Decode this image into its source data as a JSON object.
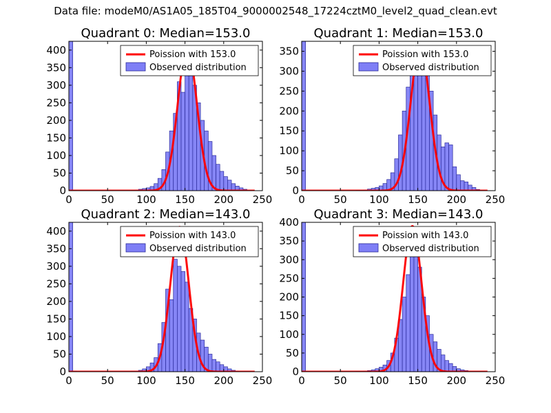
{
  "figure": {
    "suptitle": "Data file: modeM0/AS1A05_185T04_9000002548_17224cztM0_level2_quad_clean.evt"
  },
  "colors": {
    "bar_fill": "#7f7ff6",
    "bar_edge": "#2a2a9a",
    "curve": "#ff0000",
    "axis": "#000000"
  },
  "chart_data": [
    {
      "type": "bar",
      "title": "Quadrant 0: Median=153.0",
      "xlabel": "",
      "ylabel": "",
      "xlim": [
        0,
        250
      ],
      "ylim": [
        0,
        425
      ],
      "xticks": [
        0,
        50,
        100,
        150,
        200,
        250
      ],
      "yticks": [
        0,
        50,
        100,
        150,
        200,
        250,
        300,
        350,
        400
      ],
      "legend": {
        "location": "top-right",
        "entries": [
          "Poission with 153.0",
          "Observed distribution"
        ]
      },
      "bin_width": 5,
      "bins": [
        {
          "x": 0,
          "count": 425
        },
        {
          "x": 5,
          "count": 1
        },
        {
          "x": 10,
          "count": 0
        },
        {
          "x": 15,
          "count": 0
        },
        {
          "x": 20,
          "count": 0
        },
        {
          "x": 25,
          "count": 0
        },
        {
          "x": 30,
          "count": 0
        },
        {
          "x": 35,
          "count": 0
        },
        {
          "x": 40,
          "count": 0
        },
        {
          "x": 45,
          "count": 0
        },
        {
          "x": 50,
          "count": 0
        },
        {
          "x": 55,
          "count": 0
        },
        {
          "x": 60,
          "count": 0
        },
        {
          "x": 65,
          "count": 0
        },
        {
          "x": 70,
          "count": 0
        },
        {
          "x": 75,
          "count": 0
        },
        {
          "x": 80,
          "count": 1
        },
        {
          "x": 85,
          "count": 2
        },
        {
          "x": 90,
          "count": 4
        },
        {
          "x": 95,
          "count": 6
        },
        {
          "x": 100,
          "count": 8
        },
        {
          "x": 105,
          "count": 12
        },
        {
          "x": 110,
          "count": 20
        },
        {
          "x": 115,
          "count": 35
        },
        {
          "x": 120,
          "count": 60
        },
        {
          "x": 125,
          "count": 110
        },
        {
          "x": 130,
          "count": 170
        },
        {
          "x": 135,
          "count": 220
        },
        {
          "x": 140,
          "count": 310
        },
        {
          "x": 145,
          "count": 280
        },
        {
          "x": 150,
          "count": 350
        },
        {
          "x": 155,
          "count": 330
        },
        {
          "x": 160,
          "count": 300
        },
        {
          "x": 165,
          "count": 250
        },
        {
          "x": 170,
          "count": 200
        },
        {
          "x": 175,
          "count": 170
        },
        {
          "x": 180,
          "count": 140
        },
        {
          "x": 185,
          "count": 100
        },
        {
          "x": 190,
          "count": 75
        },
        {
          "x": 195,
          "count": 55
        },
        {
          "x": 200,
          "count": 40
        },
        {
          "x": 205,
          "count": 30
        },
        {
          "x": 210,
          "count": 20
        },
        {
          "x": 215,
          "count": 13
        },
        {
          "x": 220,
          "count": 8
        },
        {
          "x": 225,
          "count": 4
        }
      ],
      "poisson": {
        "mean": 153.0,
        "peak": 408
      }
    },
    {
      "type": "bar",
      "title": "Quadrant 1: Median=153.0",
      "xlabel": "",
      "ylabel": "",
      "xlim": [
        0,
        250
      ],
      "ylim": [
        0,
        375
      ],
      "xticks": [
        0,
        50,
        100,
        150,
        200,
        250
      ],
      "yticks": [
        0,
        50,
        100,
        150,
        200,
        250,
        300,
        350
      ],
      "legend": {
        "location": "top-right",
        "entries": [
          "Poission with 153.0",
          "Observed distribution"
        ]
      },
      "bin_width": 5,
      "bins": [
        {
          "x": 0,
          "count": 375
        },
        {
          "x": 5,
          "count": 0
        },
        {
          "x": 10,
          "count": 0
        },
        {
          "x": 15,
          "count": 0
        },
        {
          "x": 20,
          "count": 0
        },
        {
          "x": 25,
          "count": 0
        },
        {
          "x": 30,
          "count": 0
        },
        {
          "x": 35,
          "count": 0
        },
        {
          "x": 40,
          "count": 0
        },
        {
          "x": 45,
          "count": 0
        },
        {
          "x": 50,
          "count": 0
        },
        {
          "x": 55,
          "count": 0
        },
        {
          "x": 60,
          "count": 0
        },
        {
          "x": 65,
          "count": 0
        },
        {
          "x": 70,
          "count": 1
        },
        {
          "x": 75,
          "count": 1
        },
        {
          "x": 80,
          "count": 2
        },
        {
          "x": 85,
          "count": 4
        },
        {
          "x": 90,
          "count": 6
        },
        {
          "x": 95,
          "count": 8
        },
        {
          "x": 100,
          "count": 12
        },
        {
          "x": 105,
          "count": 18
        },
        {
          "x": 110,
          "count": 28
        },
        {
          "x": 115,
          "count": 45
        },
        {
          "x": 120,
          "count": 80
        },
        {
          "x": 125,
          "count": 140
        },
        {
          "x": 130,
          "count": 200
        },
        {
          "x": 135,
          "count": 260
        },
        {
          "x": 140,
          "count": 310
        },
        {
          "x": 145,
          "count": 350
        },
        {
          "x": 150,
          "count": 335
        },
        {
          "x": 155,
          "count": 360
        },
        {
          "x": 160,
          "count": 300
        },
        {
          "x": 165,
          "count": 250
        },
        {
          "x": 170,
          "count": 190
        },
        {
          "x": 175,
          "count": 140
        },
        {
          "x": 180,
          "count": 110
        },
        {
          "x": 185,
          "count": 120
        },
        {
          "x": 190,
          "count": 115
        },
        {
          "x": 195,
          "count": 60
        },
        {
          "x": 200,
          "count": 40
        },
        {
          "x": 205,
          "count": 25
        },
        {
          "x": 210,
          "count": 22
        },
        {
          "x": 215,
          "count": 14
        },
        {
          "x": 220,
          "count": 8
        },
        {
          "x": 225,
          "count": 3
        }
      ],
      "poisson": {
        "mean": 153.0,
        "peak": 362
      }
    },
    {
      "type": "bar",
      "title": "Quadrant 2: Median=143.0",
      "xlabel": "",
      "ylabel": "",
      "xlim": [
        0,
        250
      ],
      "ylim": [
        0,
        425
      ],
      "xticks": [
        0,
        50,
        100,
        150,
        200,
        250
      ],
      "yticks": [
        0,
        50,
        100,
        150,
        200,
        250,
        300,
        350,
        400
      ],
      "legend": {
        "location": "top-right",
        "entries": [
          "Poission with 143.0",
          "Observed distribution"
        ]
      },
      "bin_width": 5,
      "bins": [
        {
          "x": 0,
          "count": 425
        },
        {
          "x": 5,
          "count": 2
        },
        {
          "x": 10,
          "count": 0
        },
        {
          "x": 15,
          "count": 0
        },
        {
          "x": 20,
          "count": 0
        },
        {
          "x": 25,
          "count": 0
        },
        {
          "x": 30,
          "count": 0
        },
        {
          "x": 35,
          "count": 0
        },
        {
          "x": 40,
          "count": 0
        },
        {
          "x": 45,
          "count": 0
        },
        {
          "x": 50,
          "count": 0
        },
        {
          "x": 55,
          "count": 0
        },
        {
          "x": 60,
          "count": 0
        },
        {
          "x": 65,
          "count": 0
        },
        {
          "x": 70,
          "count": 0
        },
        {
          "x": 75,
          "count": 0
        },
        {
          "x": 80,
          "count": 2
        },
        {
          "x": 85,
          "count": 2
        },
        {
          "x": 90,
          "count": 4
        },
        {
          "x": 95,
          "count": 8
        },
        {
          "x": 100,
          "count": 14
        },
        {
          "x": 105,
          "count": 25
        },
        {
          "x": 110,
          "count": 40
        },
        {
          "x": 115,
          "count": 80
        },
        {
          "x": 120,
          "count": 140
        },
        {
          "x": 125,
          "count": 235
        },
        {
          "x": 130,
          "count": 205
        },
        {
          "x": 135,
          "count": 320
        },
        {
          "x": 140,
          "count": 300
        },
        {
          "x": 145,
          "count": 285
        },
        {
          "x": 150,
          "count": 255
        },
        {
          "x": 155,
          "count": 180
        },
        {
          "x": 160,
          "count": 150
        },
        {
          "x": 165,
          "count": 110
        },
        {
          "x": 170,
          "count": 90
        },
        {
          "x": 175,
          "count": 70
        },
        {
          "x": 180,
          "count": 50
        },
        {
          "x": 185,
          "count": 35
        },
        {
          "x": 190,
          "count": 28
        },
        {
          "x": 195,
          "count": 20
        },
        {
          "x": 200,
          "count": 14
        },
        {
          "x": 205,
          "count": 8
        },
        {
          "x": 210,
          "count": 4
        },
        {
          "x": 215,
          "count": 2
        }
      ],
      "poisson": {
        "mean": 143.0,
        "peak": 412
      }
    },
    {
      "type": "bar",
      "title": "Quadrant 3: Median=143.0",
      "xlabel": "",
      "ylabel": "",
      "xlim": [
        0,
        250
      ],
      "ylim": [
        0,
        400
      ],
      "xticks": [
        0,
        50,
        100,
        150,
        200,
        250
      ],
      "yticks": [
        0,
        50,
        100,
        150,
        200,
        250,
        300,
        350,
        400
      ],
      "legend": {
        "location": "top-right",
        "entries": [
          "Poission with 143.0",
          "Observed distribution"
        ]
      },
      "bin_width": 5,
      "bins": [
        {
          "x": 0,
          "count": 400
        },
        {
          "x": 5,
          "count": 0
        },
        {
          "x": 10,
          "count": 0
        },
        {
          "x": 15,
          "count": 0
        },
        {
          "x": 20,
          "count": 0
        },
        {
          "x": 25,
          "count": 0
        },
        {
          "x": 30,
          "count": 0
        },
        {
          "x": 35,
          "count": 0
        },
        {
          "x": 40,
          "count": 0
        },
        {
          "x": 45,
          "count": 0
        },
        {
          "x": 50,
          "count": 0
        },
        {
          "x": 55,
          "count": 0
        },
        {
          "x": 60,
          "count": 0
        },
        {
          "x": 65,
          "count": 0
        },
        {
          "x": 70,
          "count": 1
        },
        {
          "x": 75,
          "count": 1
        },
        {
          "x": 80,
          "count": 2
        },
        {
          "x": 85,
          "count": 3
        },
        {
          "x": 90,
          "count": 5
        },
        {
          "x": 95,
          "count": 8
        },
        {
          "x": 100,
          "count": 12
        },
        {
          "x": 105,
          "count": 18
        },
        {
          "x": 110,
          "count": 30
        },
        {
          "x": 115,
          "count": 50
        },
        {
          "x": 120,
          "count": 90
        },
        {
          "x": 125,
          "count": 140
        },
        {
          "x": 130,
          "count": 200
        },
        {
          "x": 135,
          "count": 260
        },
        {
          "x": 140,
          "count": 330
        },
        {
          "x": 145,
          "count": 320
        },
        {
          "x": 150,
          "count": 280
        },
        {
          "x": 155,
          "count": 200
        },
        {
          "x": 160,
          "count": 150
        },
        {
          "x": 165,
          "count": 100
        },
        {
          "x": 170,
          "count": 80
        },
        {
          "x": 175,
          "count": 60
        },
        {
          "x": 180,
          "count": 45
        },
        {
          "x": 185,
          "count": 30
        },
        {
          "x": 190,
          "count": 22
        },
        {
          "x": 195,
          "count": 14
        },
        {
          "x": 200,
          "count": 8
        },
        {
          "x": 205,
          "count": 5
        },
        {
          "x": 210,
          "count": 3
        }
      ],
      "poisson": {
        "mean": 143.0,
        "peak": 390
      }
    }
  ]
}
